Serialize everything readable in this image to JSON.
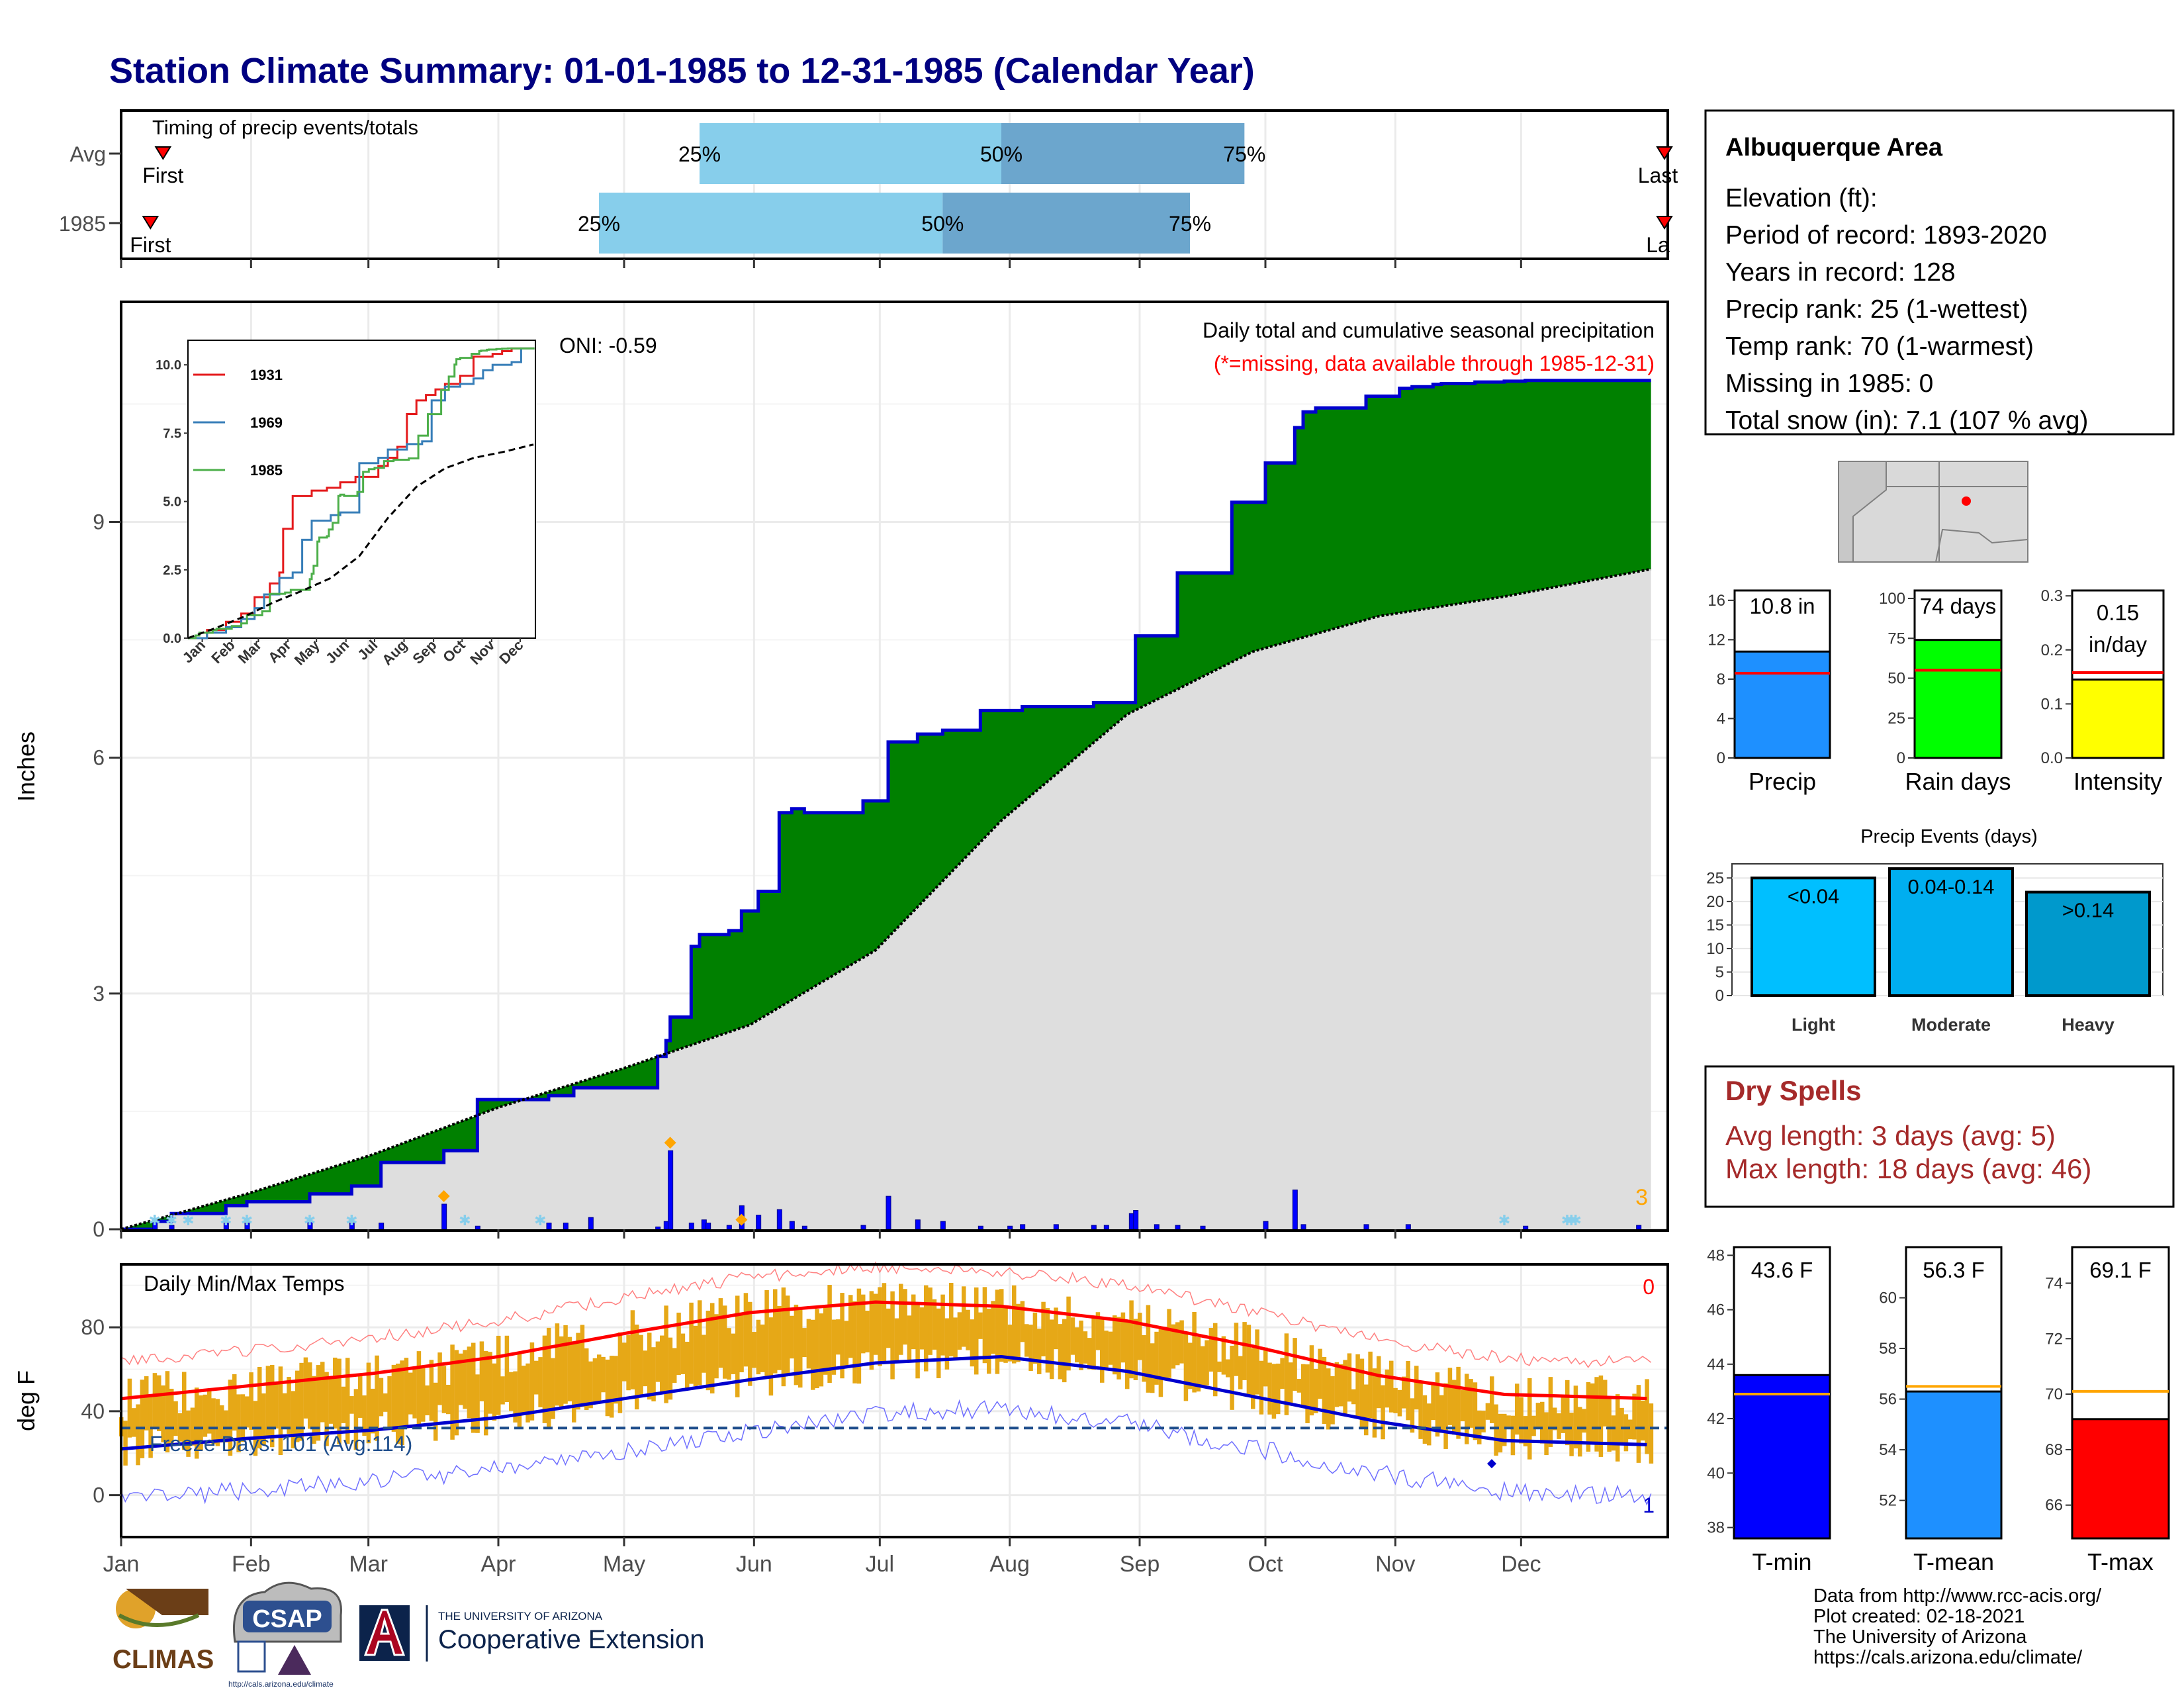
{
  "title": "Station Climate Summary: 01-01-1985 to 12-31-1985 (Calendar Year)",
  "colors": {
    "title": "#000080",
    "precip_fill": "#008000",
    "precip_line": "#0000cd",
    "normal_fill": "#dedede",
    "bar_blue": "#0000ff",
    "dry_spell": "#a52a2a",
    "temp_bar": "#e6a817",
    "tmax_line": "#ff0000",
    "tmin_line": "#0000cd",
    "quartile_light": "#87ceeb",
    "quartile_dark": "#6ca6cd",
    "missing_text": "#ff0000"
  },
  "timing_panel": {
    "label": "Timing of precip events/totals",
    "rows": [
      {
        "name": "Avg",
        "first_label": "First",
        "last_label": "Last",
        "first_day": 10,
        "last_day": 369,
        "q25_day": 138,
        "q50_day": 210,
        "q75_day": 268,
        "q25_label": "25%",
        "q50_label": "50%",
        "q75_label": "75%"
      },
      {
        "name": "1985",
        "first_label": "First",
        "last_label": "La",
        "first_day": 7,
        "last_day": 384,
        "q25_day": 114,
        "q50_day": 196,
        "q75_day": 255,
        "q25_label": "25%",
        "q50_label": "50%",
        "q75_label": "75%"
      }
    ]
  },
  "precip_panel": {
    "ylabel": "Inches",
    "title": "Daily total and cumulative seasonal precipitation",
    "subtitle": "(*=missing, data available through 1985-12-31)",
    "oni": "ONI: -0.59",
    "corner_count": "3",
    "y_ticks": [
      "0",
      "3",
      "6",
      "9"
    ]
  },
  "inset": {
    "y_ticks": [
      "0.0",
      "2.5",
      "5.0",
      "7.5",
      "10.0"
    ],
    "x_ticks": [
      "Jan",
      "Feb",
      "Mar",
      "Apr",
      "May",
      "Jun",
      "Jul",
      "Aug",
      "Sep",
      "Oct",
      "Nov",
      "Dec"
    ],
    "legend": [
      {
        "name": "1931",
        "color": "#e41a1c"
      },
      {
        "name": "1969",
        "color": "#377eb8"
      },
      {
        "name": "1985",
        "color": "#4daf4a"
      }
    ]
  },
  "temp_panel": {
    "ylabel": "deg F",
    "label": "Daily Min/Max Temps",
    "freeze_label": "Freeze Days: 101 (Avg:114)",
    "corner_top": "0",
    "corner_bottom": "1",
    "y_ticks": [
      "0",
      "40",
      "80"
    ]
  },
  "months": [
    "Jan",
    "Feb",
    "Mar",
    "Apr",
    "May",
    "Jun",
    "Jul",
    "Aug",
    "Sep",
    "Oct",
    "Nov",
    "Dec"
  ],
  "info_box": {
    "station": "Albuquerque Area",
    "lines": [
      "Elevation (ft):",
      "Period of record: 1893-2020",
      "Years in record: 128",
      "Precip rank: 25 (1-wettest)",
      "Temp rank: 70 (1-warmest)",
      "Missing in 1985: 0",
      "Total snow (in): 7.1 (107 % avg)"
    ]
  },
  "precip_stats": [
    {
      "label": "Precip",
      "value_label": "10.8 in",
      "value": 10.8,
      "avg": 8.6,
      "ymax": 17,
      "ticks": [
        "0",
        "4",
        "8",
        "12",
        "16"
      ],
      "color": "#1e90ff"
    },
    {
      "label": "Rain days",
      "value_label": "74 days",
      "value": 74,
      "avg": 55,
      "ymax": 105,
      "ticks": [
        "0",
        "25",
        "50",
        "75",
        "100"
      ],
      "color": "#00ff00"
    },
    {
      "label": "Intensity",
      "value_label": "0.15",
      "value_label2": "in/day",
      "value": 0.145,
      "avg": 0.158,
      "ymax": 0.31,
      "ticks": [
        "0.0",
        "0.1",
        "0.2",
        "0.3"
      ],
      "color": "#ffff00"
    }
  ],
  "precip_events": {
    "title": "Precip Events (days)",
    "ticks": [
      "0",
      "5",
      "10",
      "15",
      "20",
      "25"
    ],
    "bars": [
      {
        "label": "Light",
        "value_label": "<0.04",
        "value": 25,
        "color": "#00bfff"
      },
      {
        "label": "Moderate",
        "value_label": "0.04-0.14",
        "value": 27,
        "color": "#00aeef"
      },
      {
        "label": "Heavy",
        "value_label": ">0.14",
        "value": 22,
        "color": "#0099cc"
      }
    ]
  },
  "dry_spells": {
    "title": "Dry Spells",
    "lines": [
      "Avg length: 3 days (avg: 5)",
      "Max length: 18 days (avg: 46)"
    ]
  },
  "temp_stats": [
    {
      "label": "T-min",
      "value_label": "43.6 F",
      "value": 43.6,
      "avg": 42.9,
      "ymin": 37.6,
      "ymax": 48.3,
      "ticks": [
        "38",
        "40",
        "42",
        "44",
        "46",
        "48"
      ],
      "color": "#0000ff"
    },
    {
      "label": "T-mean",
      "value_label": "56.3 F",
      "value": 56.3,
      "avg": 56.5,
      "ymin": 50.5,
      "ymax": 62,
      "ticks": [
        "52",
        "54",
        "56",
        "58",
        "60"
      ],
      "color": "#1e90ff"
    },
    {
      "label": "T-max",
      "value_label": "69.1 F",
      "value": 69.1,
      "avg": 70.1,
      "ymin": 64.8,
      "ymax": 75.3,
      "ticks": [
        "66",
        "68",
        "70",
        "72",
        "74"
      ],
      "color": "#ff0000"
    }
  ],
  "footer": {
    "logo_climas": "CLIMAS",
    "logo_csap": "CSAP",
    "logo_csap_url": "http://cals.arizona.edu/climate",
    "ua_line1": "THE UNIVERSITY OF ARIZONA",
    "ua_line2": "Cooperative Extension",
    "credits": [
      "Data from http://www.rcc-acis.org/",
      "Plot created: 02-18-2021",
      "The University of Arizona",
      "https://cals.arizona.edu/climate/"
    ]
  },
  "chart_data": {
    "type": "area",
    "title": "Daily total and cumulative seasonal precipitation",
    "ylabel": "Inches",
    "ylim": [
      0,
      11.8
    ],
    "cumulative_1985": {
      "days": [
        0,
        8,
        12,
        25,
        30,
        45,
        55,
        62,
        77,
        85,
        102,
        108,
        128,
        130,
        131,
        136,
        138,
        145,
        148,
        152,
        157,
        160,
        163,
        177,
        183,
        190,
        196,
        205,
        215,
        223,
        232,
        242,
        252,
        265,
        273,
        280,
        282,
        285,
        297,
        305,
        308,
        313,
        315,
        323,
        330,
        335,
        345,
        355,
        365
      ],
      "values": [
        0,
        0.1,
        0.2,
        0.3,
        0.35,
        0.45,
        0.55,
        0.85,
        1.0,
        1.65,
        1.7,
        1.8,
        2.2,
        2.4,
        2.7,
        3.6,
        3.75,
        3.8,
        4.05,
        4.3,
        5.3,
        5.35,
        5.3,
        5.45,
        6.2,
        6.3,
        6.35,
        6.6,
        6.65,
        6.65,
        6.7,
        7.55,
        8.35,
        9.25,
        9.75,
        10.2,
        10.4,
        10.45,
        10.6,
        10.7,
        10.72,
        10.75,
        10.76,
        10.78,
        10.79,
        10.8,
        10.8,
        10.8,
        10.8
      ]
    },
    "cumulative_normal": {
      "days": [
        0,
        30,
        60,
        90,
        120,
        150,
        180,
        210,
        240,
        270,
        300,
        330,
        365
      ],
      "values": [
        0,
        0.45,
        0.95,
        1.55,
        2.05,
        2.6,
        3.55,
        5.2,
        6.55,
        7.35,
        7.8,
        8.05,
        8.4
      ]
    },
    "daily_bars": {
      "days": [
        8,
        12,
        25,
        30,
        45,
        55,
        62,
        77,
        85,
        102,
        106,
        112,
        128,
        130,
        131,
        136,
        139,
        140,
        145,
        148,
        152,
        157,
        160,
        163,
        177,
        183,
        190,
        196,
        205,
        212,
        215,
        223,
        232,
        235,
        241,
        242,
        247,
        252,
        258,
        273,
        280,
        282,
        297,
        307,
        335,
        362
      ],
      "values": [
        0.1,
        0.05,
        0.08,
        0.08,
        0.1,
        0.08,
        0.08,
        0.32,
        0.04,
        0.08,
        0.08,
        0.15,
        0.03,
        0.1,
        1.0,
        0.08,
        0.12,
        0.08,
        0.05,
        0.3,
        0.18,
        0.25,
        0.1,
        0.04,
        0.05,
        0.42,
        0.12,
        0.1,
        0.04,
        0.04,
        0.06,
        0.06,
        0.05,
        0.05,
        0.2,
        0.24,
        0.06,
        0.05,
        0.04,
        0.1,
        0.5,
        0.06,
        0.06,
        0.06,
        0.04,
        0.05
      ]
    },
    "temperature": {
      "ylim": [
        -20,
        110
      ],
      "normal_max": {
        "days": [
          0,
          30,
          60,
          90,
          120,
          150,
          180,
          210,
          240,
          270,
          300,
          330,
          365
        ],
        "values": [
          46,
          52,
          58,
          66,
          77,
          87,
          92,
          90,
          83,
          71,
          57,
          48,
          46
        ]
      },
      "normal_min": {
        "days": [
          0,
          30,
          60,
          90,
          120,
          150,
          180,
          210,
          240,
          270,
          300,
          330,
          365
        ],
        "values": [
          22,
          27,
          31,
          37,
          46,
          55,
          63,
          66,
          59,
          47,
          35,
          26,
          24
        ]
      },
      "freeze_threshold": 32
    }
  }
}
